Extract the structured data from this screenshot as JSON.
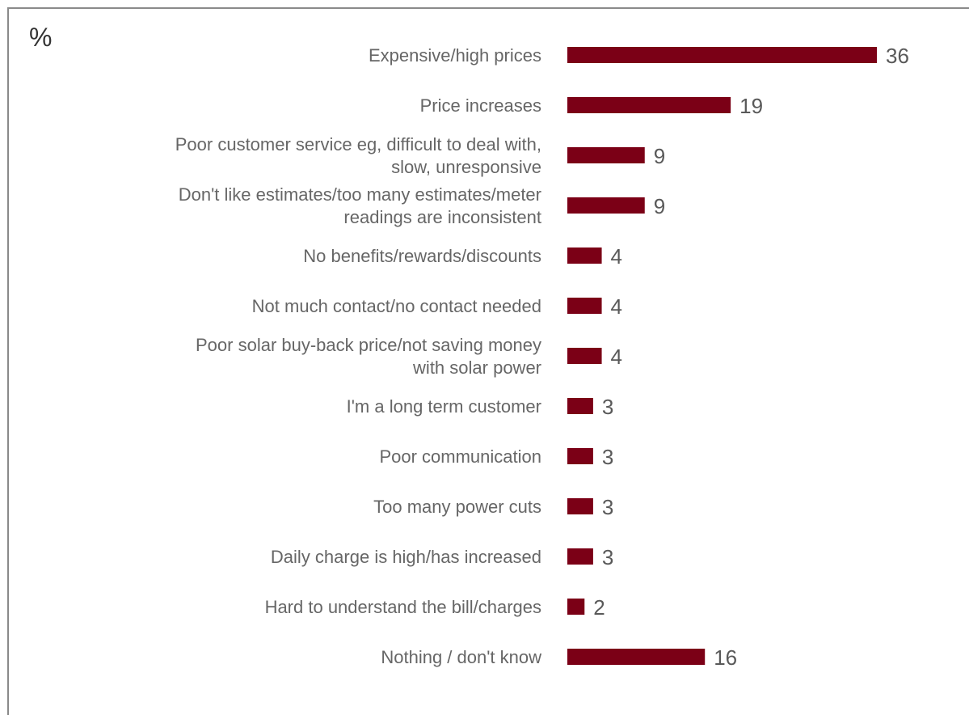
{
  "chart_data": {
    "type": "bar",
    "orientation": "horizontal",
    "unit_label": "%",
    "title": "",
    "xlabel": "",
    "ylabel": "",
    "categories": [
      [
        "Expensive/high prices"
      ],
      [
        "Price increases"
      ],
      [
        "Poor customer service eg, difficult to deal with,",
        "slow, unresponsive"
      ],
      [
        "Don't like estimates/too many estimates/meter",
        "readings are inconsistent"
      ],
      [
        "No benefits/rewards/discounts"
      ],
      [
        "Not much contact/no contact needed"
      ],
      [
        "Poor solar buy-back price/not saving money",
        "with solar power"
      ],
      [
        "I'm a long term customer"
      ],
      [
        "Poor communication"
      ],
      [
        "Too many power cuts"
      ],
      [
        "Daily charge is high/has increased"
      ],
      [
        "Hard to understand the bill/charges"
      ],
      [
        "Nothing / don't know"
      ]
    ],
    "values": [
      36,
      19,
      9,
      9,
      4,
      4,
      4,
      3,
      3,
      3,
      3,
      2,
      16
    ],
    "data_labels": [
      "36",
      "19",
      "9",
      "9",
      "4",
      "4",
      "4",
      "3",
      "3",
      "3",
      "3",
      "2",
      "16"
    ],
    "xlim": [
      0,
      36
    ],
    "grid": false,
    "legend": "none",
    "bar_color": "#7b0016"
  }
}
